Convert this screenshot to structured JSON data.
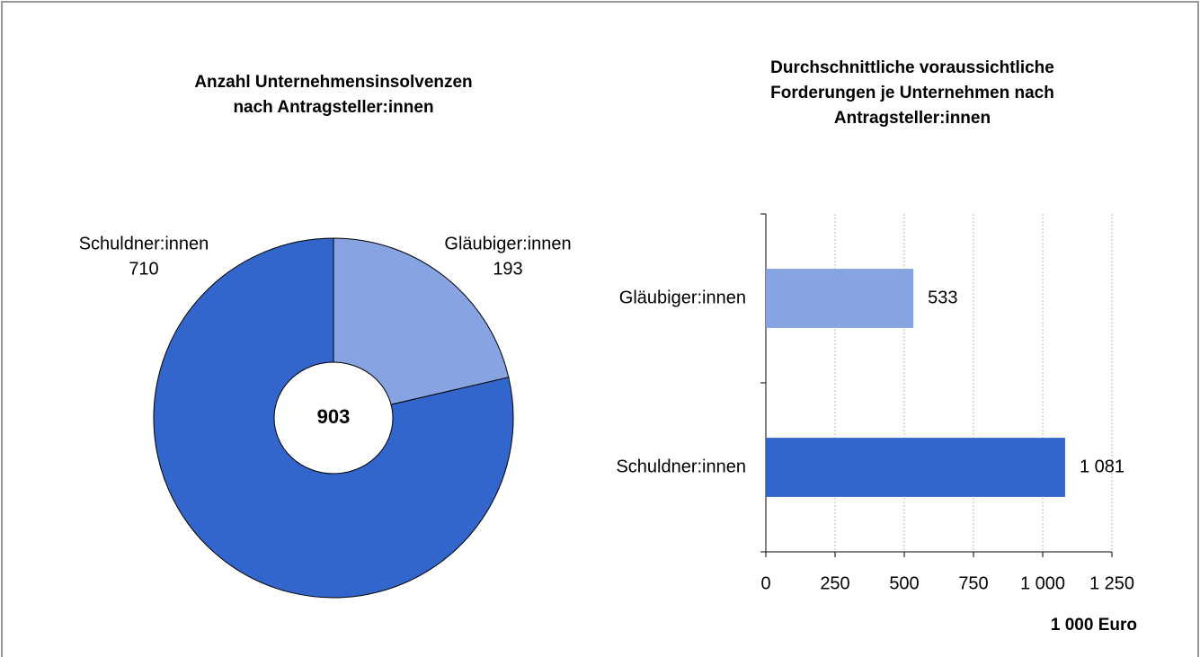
{
  "chart_data": [
    {
      "type": "pie",
      "title": [
        "Anzahl Unternehmensinsolvenzen",
        "nach Antragsteller:innen"
      ],
      "categories": [
        "Gläubiger:innen",
        "Schuldner:innen"
      ],
      "values": [
        193,
        710
      ],
      "colors": [
        "#87a3e1",
        "#3366cc"
      ],
      "total": 903
    },
    {
      "type": "hbar",
      "title": [
        "Durchschnittliche voraussichtliche",
        "Forderungen je Unternehmen nach",
        "Antragsteller:innen"
      ],
      "categories": [
        "Gläubiger:innen",
        "Schuldner:innen"
      ],
      "values": [
        533,
        1081
      ],
      "value_labels": [
        "533",
        "1 081"
      ],
      "colors": [
        "#87a3e1",
        "#3366cc"
      ],
      "xlim": [
        0,
        1250
      ],
      "xticks": [
        0,
        250,
        500,
        750,
        {
          "value": 1000,
          "label": "1 000"
        },
        {
          "value": 1250,
          "label": "1 250"
        }
      ],
      "xlabel": "1 000 Euro",
      "grid": true
    }
  ]
}
